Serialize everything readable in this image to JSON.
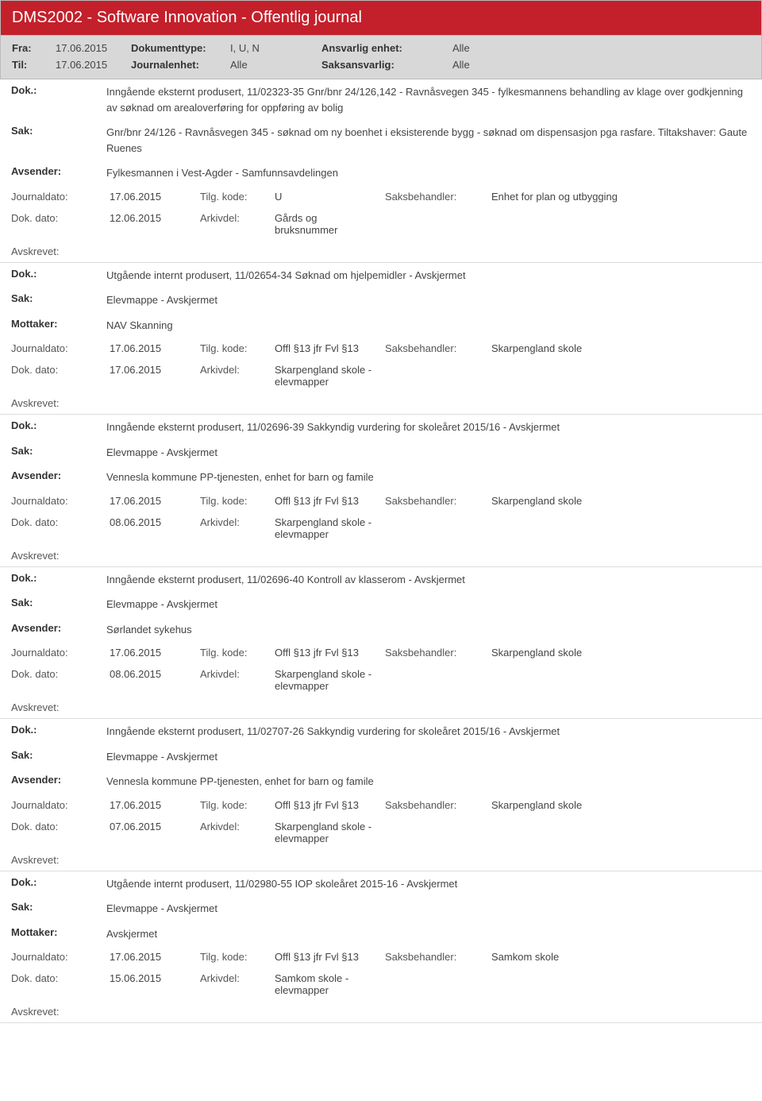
{
  "header": {
    "title": "DMS2002 - Software Innovation - Offentlig journal"
  },
  "filter": {
    "fra_label": "Fra:",
    "fra_value": "17.06.2015",
    "til_label": "Til:",
    "til_value": "17.06.2015",
    "doktype_label": "Dokumenttype:",
    "doktype_value": "I, U, N",
    "jenhet_label": "Journalenhet:",
    "jenhet_value": "Alle",
    "ansv_label": "Ansvarlig enhet:",
    "ansv_value": "Alle",
    "saks_label": "Saksansvarlig:",
    "saks_value": "Alle"
  },
  "labels": {
    "dok": "Dok.:",
    "sak": "Sak:",
    "avsender": "Avsender:",
    "mottaker": "Mottaker:",
    "journaldato": "Journaldato:",
    "tilgkode": "Tilg. kode:",
    "saksbeh": "Saksbehandler:",
    "dokdato": "Dok. dato:",
    "arkivdel": "Arkivdel:",
    "avskrevet": "Avskrevet:"
  },
  "entries": [
    {
      "dok": "Inngående eksternt produsert, 11/02323-35 Gnr/bnr 24/126,142 - Ravnåsvegen 345 - fylkesmannens behandling av klage over godkjenning av søknad om arealoverføring for oppføring av bolig",
      "sak": "Gnr/bnr 24/126 - Ravnåsvegen 345 - søknad om ny boenhet i eksisterende bygg - søknad om dispensasjon pga rasfare. Tiltakshaver: Gaute Ruenes",
      "party_label": "avsender",
      "party": "Fylkesmannen i Vest-Agder - Samfunnsavdelingen",
      "journaldato": "17.06.2015",
      "tilgkode": "U",
      "saksbeh": "Enhet for plan og utbygging",
      "dokdato": "12.06.2015",
      "arkivdel": "Gårds og bruksnummer"
    },
    {
      "dok": "Utgående internt produsert, 11/02654-34 Søknad om hjelpemidler - Avskjermet",
      "sak": "Elevmappe - Avskjermet",
      "party_label": "mottaker",
      "party": "NAV Skanning",
      "journaldato": "17.06.2015",
      "tilgkode": "Offl §13 jfr Fvl §13",
      "saksbeh": "Skarpengland skole",
      "dokdato": "17.06.2015",
      "arkivdel": "Skarpengland skole - elevmapper"
    },
    {
      "dok": "Inngående eksternt produsert, 11/02696-39 Sakkyndig vurdering for skoleåret 2015/16 - Avskjermet",
      "sak": "Elevmappe - Avskjermet",
      "party_label": "avsender",
      "party": "Vennesla kommune PP-tjenesten, enhet for barn og famile",
      "journaldato": "17.06.2015",
      "tilgkode": "Offl §13 jfr Fvl §13",
      "saksbeh": "Skarpengland skole",
      "dokdato": "08.06.2015",
      "arkivdel": "Skarpengland skole - elevmapper"
    },
    {
      "dok": "Inngående eksternt produsert, 11/02696-40 Kontroll av klasserom - Avskjermet",
      "sak": "Elevmappe - Avskjermet",
      "party_label": "avsender",
      "party": "Sørlandet sykehus",
      "journaldato": "17.06.2015",
      "tilgkode": "Offl §13 jfr Fvl §13",
      "saksbeh": "Skarpengland skole",
      "dokdato": "08.06.2015",
      "arkivdel": "Skarpengland skole - elevmapper"
    },
    {
      "dok": "Inngående eksternt produsert, 11/02707-26 Sakkyndig vurdering for skoleåret 2015/16 - Avskjermet",
      "sak": "Elevmappe - Avskjermet",
      "party_label": "avsender",
      "party": "Vennesla kommune PP-tjenesten, enhet for barn og famile",
      "journaldato": "17.06.2015",
      "tilgkode": "Offl §13 jfr Fvl §13",
      "saksbeh": "Skarpengland skole",
      "dokdato": "07.06.2015",
      "arkivdel": "Skarpengland skole - elevmapper"
    },
    {
      "dok": "Utgående internt produsert, 11/02980-55 IOP skoleåret 2015-16 - Avskjermet",
      "sak": "Elevmappe - Avskjermet",
      "party_label": "mottaker",
      "party": "Avskjermet",
      "journaldato": "17.06.2015",
      "tilgkode": "Offl §13 jfr Fvl §13",
      "saksbeh": "Samkom skole",
      "dokdato": "15.06.2015",
      "arkivdel": "Samkom skole - elevmapper"
    }
  ]
}
